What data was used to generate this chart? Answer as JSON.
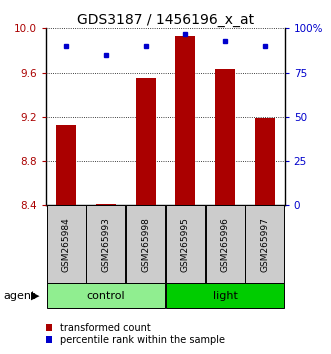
{
  "title": "GDS3187 / 1456196_x_at",
  "samples": [
    "GSM265984",
    "GSM265993",
    "GSM265998",
    "GSM265995",
    "GSM265996",
    "GSM265997"
  ],
  "transformed_counts": [
    9.13,
    8.41,
    9.55,
    9.93,
    9.63,
    9.19
  ],
  "percentile_ranks": [
    90,
    85,
    90,
    97,
    93,
    90
  ],
  "ylim_left": [
    8.4,
    10.0
  ],
  "ylim_right": [
    0,
    100
  ],
  "yticks_left": [
    8.4,
    8.8,
    9.2,
    9.6,
    10.0
  ],
  "yticks_right": [
    0,
    25,
    50,
    75,
    100
  ],
  "groups": [
    {
      "label": "control",
      "indices": [
        0,
        1,
        2
      ],
      "color": "#90EE90"
    },
    {
      "label": "light",
      "indices": [
        3,
        4,
        5
      ],
      "color": "#00CC00"
    }
  ],
  "bar_color": "#AA0000",
  "dot_color": "#0000CC",
  "bar_width": 0.5,
  "bg_xticklabel": "#cccccc",
  "agent_label": "agent",
  "legend_items": [
    {
      "color": "#AA0000",
      "label": "transformed count"
    },
    {
      "color": "#0000CC",
      "label": "percentile rank within the sample"
    }
  ],
  "title_fontsize": 10,
  "tick_fontsize": 7.5,
  "sample_fontsize": 6.5,
  "group_fontsize": 8,
  "legend_fontsize": 7
}
